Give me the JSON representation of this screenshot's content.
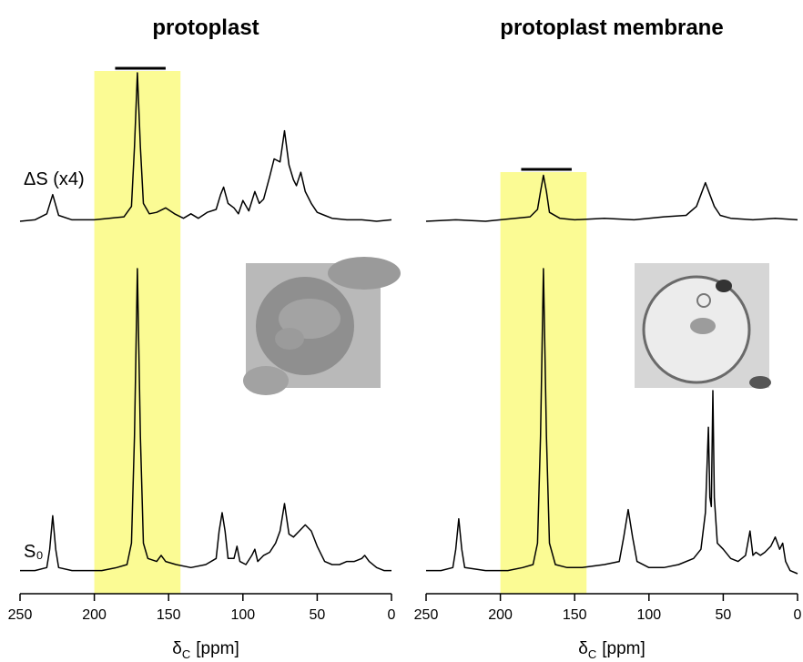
{
  "chart_data": [
    {
      "type": "line",
      "title": "protoplast",
      "xlim": [
        250,
        0
      ],
      "xticks": [
        250,
        200,
        150,
        100,
        50,
        0
      ],
      "xlabel": {
        "symbol": "δ",
        "subscript": "C",
        "unit": "[ppm]"
      },
      "highlight": [
        200,
        142
      ],
      "highlight_color": "#fbfb94",
      "bar": [
        186,
        152
      ],
      "series": [
        {
          "name": "ΔS (x4)",
          "color": "#000000",
          "x": [
            250,
            240,
            232,
            228,
            224,
            215,
            200,
            190,
            180,
            175,
            173,
            171,
            169,
            167,
            163,
            158,
            152,
            146,
            140,
            135,
            130,
            124,
            118,
            115,
            113,
            110,
            106,
            103,
            100,
            96,
            92,
            89,
            86,
            82,
            79,
            75,
            72,
            69,
            66,
            64,
            61,
            58,
            54,
            50,
            45,
            40,
            30,
            20,
            10,
            0
          ],
          "values": [
            0,
            1,
            5,
            18,
            4,
            1,
            1,
            2,
            3,
            10,
            50,
            100,
            50,
            12,
            5,
            6,
            9,
            5,
            2,
            5,
            2,
            6,
            8,
            18,
            23,
            12,
            9,
            5,
            14,
            7,
            20,
            12,
            15,
            30,
            42,
            40,
            61,
            38,
            28,
            24,
            33,
            20,
            12,
            6,
            4,
            2,
            1,
            1,
            0,
            1
          ]
        },
        {
          "name": "S₀",
          "color": "#000000",
          "x": [
            250,
            240,
            232,
            230,
            228,
            226,
            224,
            215,
            205,
            195,
            185,
            178,
            175,
            173,
            171,
            169,
            167,
            164,
            158,
            155,
            152,
            145,
            135,
            125,
            118,
            116,
            114,
            112,
            110,
            106,
            104,
            102,
            98,
            94,
            92,
            90,
            86,
            82,
            78,
            75,
            72,
            69,
            66,
            62,
            58,
            54,
            50,
            45,
            40,
            35,
            30,
            25,
            20,
            18,
            15,
            10,
            5,
            0
          ],
          "values": [
            1,
            1,
            2,
            8,
            19,
            8,
            2,
            1,
            1,
            1,
            2,
            3,
            10,
            45,
            100,
            45,
            10,
            5,
            4,
            6,
            4,
            3,
            2,
            3,
            5,
            14,
            20,
            14,
            5,
            5,
            9,
            4,
            3,
            6,
            8,
            4,
            6,
            7,
            10,
            14,
            23,
            13,
            12,
            14,
            16,
            14,
            9,
            4,
            3,
            3,
            4,
            4,
            5,
            6,
            4,
            2,
            1,
            1
          ]
        }
      ]
    },
    {
      "type": "line",
      "title": "protoplast membrane",
      "xlim": [
        250,
        0
      ],
      "xticks": [
        250,
        200,
        150,
        100,
        50,
        0
      ],
      "xlabel": {
        "symbol": "δ",
        "subscript": "C",
        "unit": "[ppm]"
      },
      "highlight": [
        200,
        142
      ],
      "highlight_color": "#fbfb94",
      "bar": [
        186,
        152
      ],
      "series": [
        {
          "color": "#000000",
          "x": [
            250,
            230,
            210,
            190,
            180,
            175,
            173,
            171,
            169,
            167,
            160,
            150,
            130,
            110,
            90,
            75,
            68,
            65,
            62,
            59,
            56,
            52,
            45,
            30,
            15,
            0
          ],
          "values": [
            0,
            1,
            0,
            2,
            3,
            8,
            20,
            31,
            20,
            6,
            2,
            1,
            2,
            1,
            3,
            4,
            10,
            18,
            26,
            18,
            10,
            4,
            2,
            1,
            2,
            1
          ]
        },
        {
          "color": "#000000",
          "x": [
            250,
            240,
            232,
            230,
            228,
            226,
            224,
            210,
            195,
            185,
            178,
            175,
            173,
            171,
            169,
            167,
            163,
            155,
            145,
            130,
            120,
            117,
            114,
            111,
            108,
            100,
            90,
            80,
            70,
            65,
            62,
            60,
            59,
            58,
            57,
            56,
            54,
            50,
            45,
            40,
            35,
            32,
            30,
            28,
            25,
            22,
            18,
            15,
            12,
            10,
            8,
            5,
            0
          ],
          "values": [
            1,
            1,
            2,
            8,
            18,
            8,
            2,
            1,
            1,
            2,
            3,
            10,
            45,
            100,
            45,
            10,
            3,
            2,
            2,
            3,
            4,
            12,
            21,
            12,
            4,
            2,
            2,
            3,
            5,
            8,
            20,
            48,
            25,
            22,
            60,
            25,
            10,
            8,
            5,
            4,
            6,
            14,
            6,
            7,
            6,
            7,
            9,
            12,
            8,
            10,
            4,
            1,
            0
          ]
        }
      ]
    }
  ]
}
